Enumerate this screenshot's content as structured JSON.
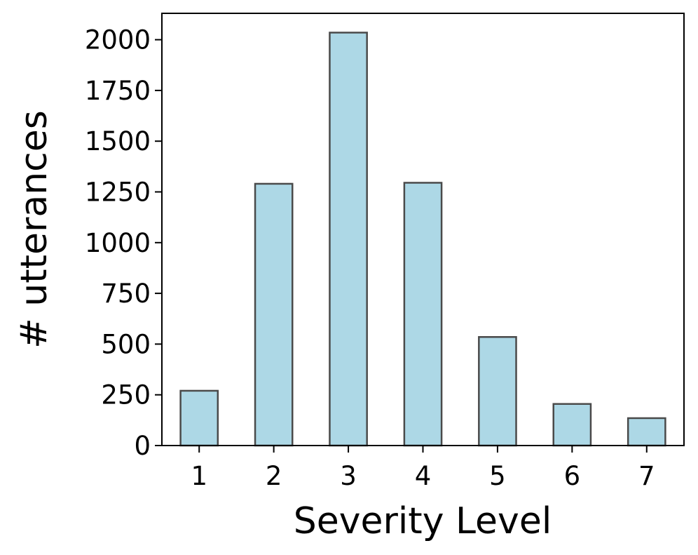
{
  "chart_data": {
    "type": "bar",
    "categories": [
      "1",
      "2",
      "3",
      "4",
      "5",
      "6",
      "7"
    ],
    "values": [
      270,
      1290,
      2035,
      1295,
      535,
      205,
      135
    ],
    "xlabel": "Severity Level",
    "ylabel": "# utterances",
    "ylim": [
      0,
      2130
    ],
    "yticks": [
      0,
      250,
      500,
      750,
      1000,
      1250,
      1500,
      1750,
      2000
    ],
    "grid": false,
    "legend": "none",
    "bar_color": "#add8e6",
    "bar_edge_color": "#4a4a4a"
  }
}
